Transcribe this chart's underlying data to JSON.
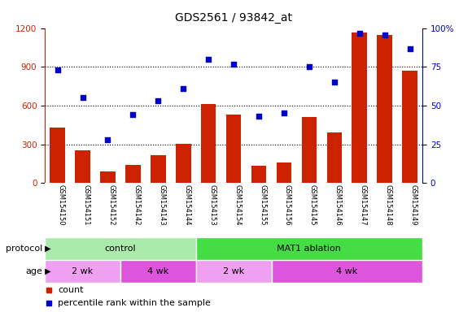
{
  "title": "GDS2561 / 93842_at",
  "samples": [
    "GSM154150",
    "GSM154151",
    "GSM154152",
    "GSM154142",
    "GSM154143",
    "GSM154144",
    "GSM154153",
    "GSM154154",
    "GSM154155",
    "GSM154156",
    "GSM154145",
    "GSM154146",
    "GSM154147",
    "GSM154148",
    "GSM154149"
  ],
  "counts": [
    430,
    255,
    90,
    140,
    215,
    305,
    610,
    530,
    130,
    155,
    510,
    390,
    1170,
    1150,
    870
  ],
  "percentiles": [
    73,
    55,
    28,
    44,
    53,
    61,
    80,
    77,
    43,
    45,
    75,
    65,
    97,
    96,
    87
  ],
  "ylim_left": [
    0,
    1200
  ],
  "ylim_right": [
    0,
    100
  ],
  "yticks_left": [
    0,
    300,
    600,
    900,
    1200
  ],
  "yticks_right": [
    0,
    25,
    50,
    75,
    100
  ],
  "bar_color": "#cc2200",
  "dot_color": "#0000cc",
  "bg_color": "#ffffff",
  "protocol_groups": [
    {
      "label": "control",
      "start": 0,
      "end": 6,
      "color": "#aaeaaa"
    },
    {
      "label": "MAT1 ablation",
      "start": 6,
      "end": 15,
      "color": "#44dd44"
    }
  ],
  "age_groups": [
    {
      "label": "2 wk",
      "start": 0,
      "end": 3,
      "color": "#f0a0f0"
    },
    {
      "label": "4 wk",
      "start": 3,
      "end": 6,
      "color": "#dd55dd"
    },
    {
      "label": "2 wk",
      "start": 6,
      "end": 9,
      "color": "#f0a0f0"
    },
    {
      "label": "4 wk",
      "start": 9,
      "end": 15,
      "color": "#dd55dd"
    }
  ],
  "protocol_label": "protocol",
  "age_label": "age",
  "legend_count_label": "count",
  "legend_pct_label": "percentile rank within the sample",
  "tick_area_color": "#c8c8c8",
  "tick_label_fontsize": 6.0,
  "title_fontsize": 10,
  "label_fontsize": 8,
  "grid_dotted_values": [
    300,
    600,
    900
  ]
}
